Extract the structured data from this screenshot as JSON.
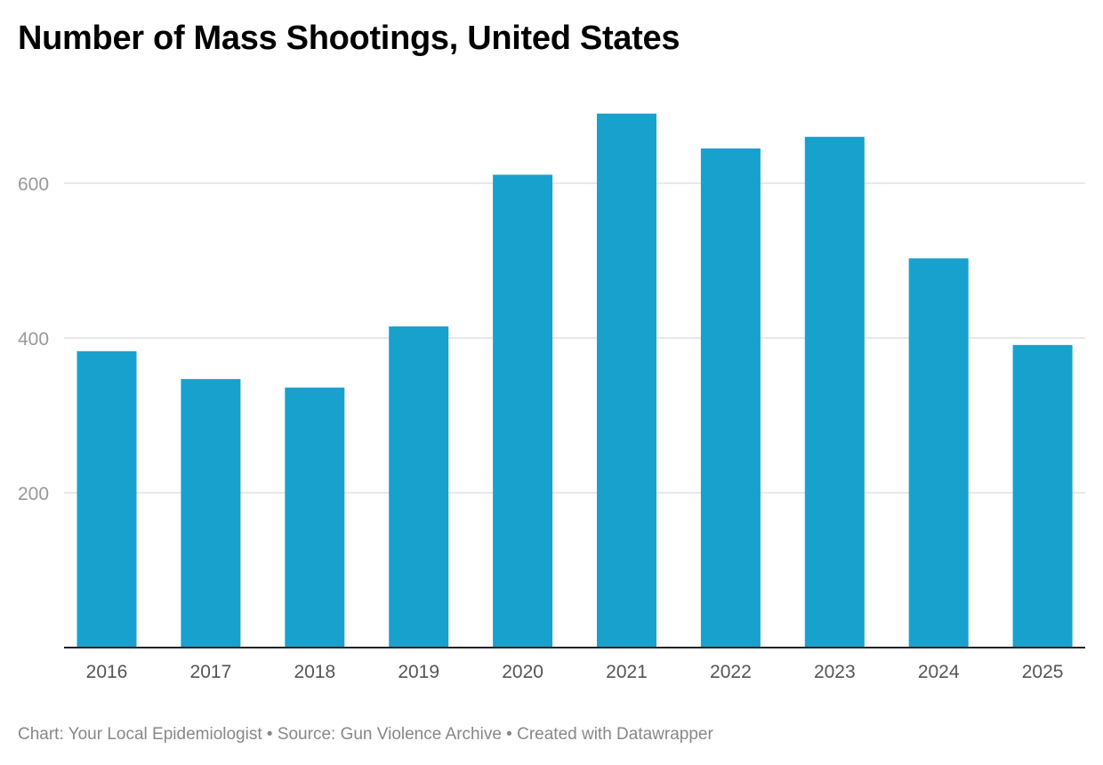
{
  "chart_data": {
    "type": "bar",
    "title": "Number of Mass Shootings, United States",
    "categories": [
      "2016",
      "2017",
      "2018",
      "2019",
      "2020",
      "2021",
      "2022",
      "2023",
      "2024",
      "2025"
    ],
    "values": [
      383,
      347,
      336,
      415,
      611,
      690,
      645,
      660,
      503,
      391
    ],
    "xlabel": "",
    "ylabel": "",
    "ylim": [
      0,
      700
    ],
    "yticks": [
      200,
      400,
      600
    ],
    "grid": true,
    "bar_color": "#18a1cd",
    "footer": "Chart: Your Local Epidemiologist • Source: Gun Violence Archive • Created with Datawrapper"
  }
}
